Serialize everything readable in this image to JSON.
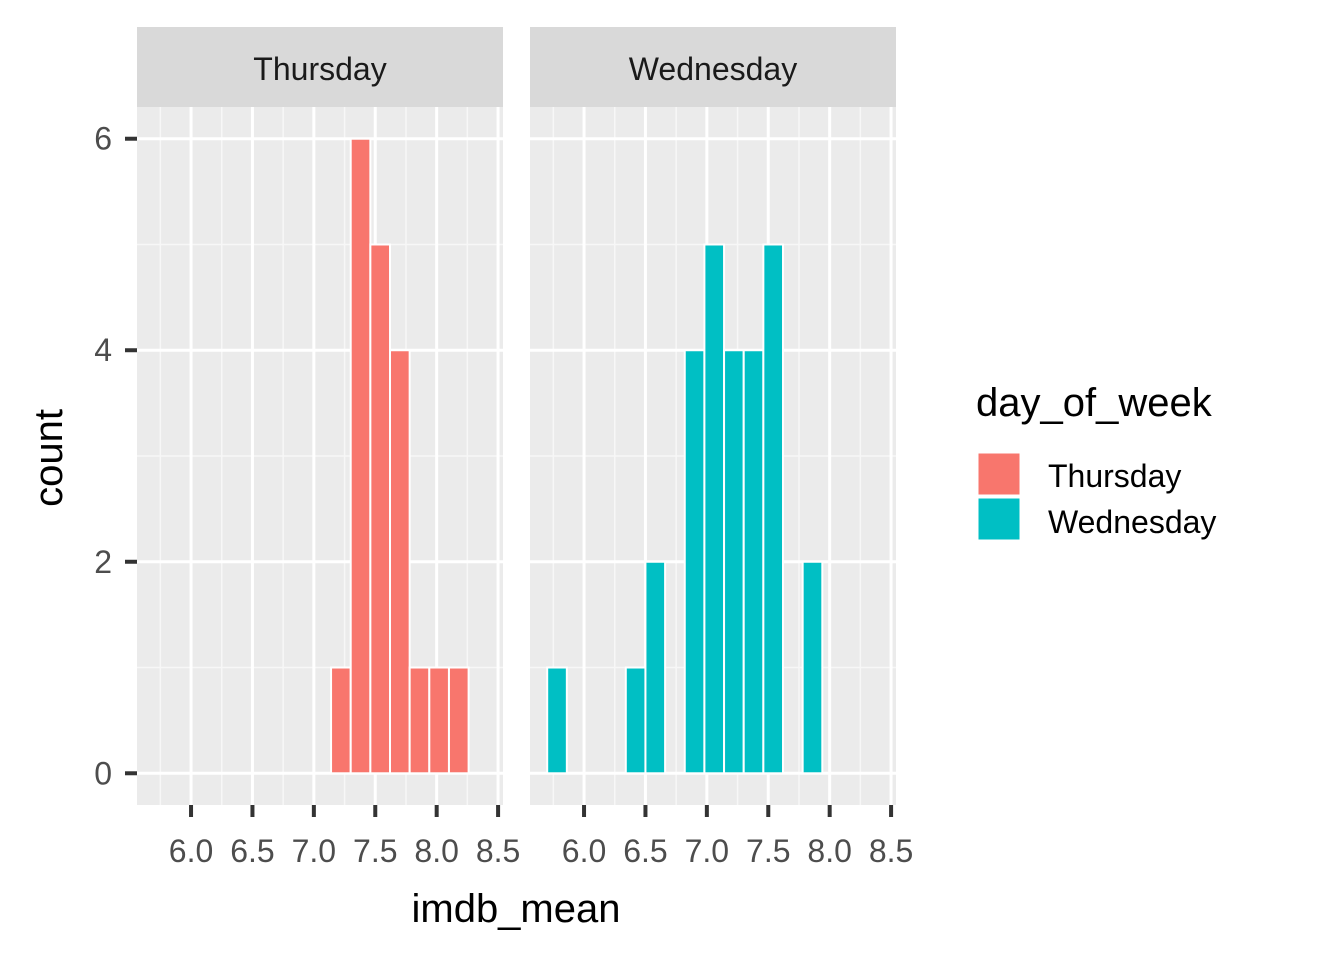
{
  "chart_data": {
    "type": "bar",
    "title": "",
    "xlabel": "imdb_mean",
    "ylabel": "count",
    "xlim": [
      5.56,
      8.54
    ],
    "ylim": [
      -0.3,
      6.3
    ],
    "bin_width": 0.16,
    "x_ticks": [
      6.0,
      6.5,
      7.0,
      7.5,
      8.0,
      8.5
    ],
    "x_tick_labels": [
      "6.0",
      "6.5",
      "7.0",
      "7.5",
      "8.0",
      "8.5"
    ],
    "y_ticks": [
      0,
      2,
      4,
      6
    ],
    "y_tick_labels": [
      "0",
      "2",
      "4",
      "6"
    ],
    "grid": true,
    "facets": [
      "Thursday",
      "Wednesday"
    ],
    "legend": {
      "title": "day_of_week",
      "placement": "right",
      "entries": [
        {
          "label": "Thursday",
          "color": "#F8766D"
        },
        {
          "label": "Wednesday",
          "color": "#00BFC4"
        }
      ]
    },
    "series": [
      {
        "name": "Thursday",
        "color": "#F8766D",
        "bins": [
          {
            "x": 7.14,
            "count": 1
          },
          {
            "x": 7.3,
            "count": 6
          },
          {
            "x": 7.46,
            "count": 5
          },
          {
            "x": 7.62,
            "count": 4
          },
          {
            "x": 7.78,
            "count": 1
          },
          {
            "x": 7.94,
            "count": 1
          },
          {
            "x": 8.1,
            "count": 1
          }
        ]
      },
      {
        "name": "Wednesday",
        "color": "#00BFC4",
        "bins": [
          {
            "x": 5.7,
            "count": 1
          },
          {
            "x": 6.34,
            "count": 1
          },
          {
            "x": 6.5,
            "count": 2
          },
          {
            "x": 6.82,
            "count": 4
          },
          {
            "x": 6.98,
            "count": 5
          },
          {
            "x": 7.14,
            "count": 4
          },
          {
            "x": 7.3,
            "count": 4
          },
          {
            "x": 7.46,
            "count": 5
          },
          {
            "x": 7.78,
            "count": 2
          }
        ]
      }
    ]
  }
}
